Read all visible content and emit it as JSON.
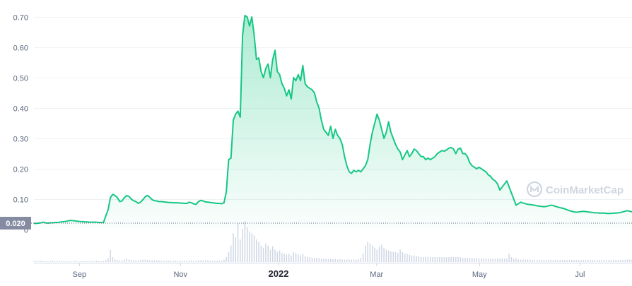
{
  "watermark": {
    "text": "CoinMarketCap",
    "icon": "coinmarketcap-logo-icon"
  },
  "current_price_label": "0.020",
  "colors": {
    "line": "#16c784",
    "fill_top": "#16c784",
    "grid": "#eff2f5",
    "axis_text": "#58667e",
    "price_tag_bg": "#858ca2",
    "volume_bar": "#cfd6e4",
    "watermark": "#d0d6e0"
  },
  "chart_data": {
    "type": "area",
    "title": "",
    "xlabel": "",
    "ylabel": "",
    "ylim": [
      0,
      0.75
    ],
    "yticks": [
      "0.70",
      "0.60",
      "0.50",
      "0.40",
      "0.30",
      "0.20",
      "0.10",
      "0"
    ],
    "xticks": [
      "Sep",
      "Nov",
      "2022",
      "Mar",
      "May",
      "Jul"
    ],
    "grid": true,
    "reference_line": 0.02,
    "series": [
      {
        "values": [
          0.02,
          0.02,
          0.021,
          0.022,
          0.024,
          0.022,
          0.021,
          0.022,
          0.022,
          0.023,
          0.023,
          0.024,
          0.025,
          0.026,
          0.027,
          0.029,
          0.03,
          0.029,
          0.028,
          0.027,
          0.026,
          0.026,
          0.025,
          0.025,
          0.024,
          0.024,
          0.024,
          0.024,
          0.023,
          0.023,
          0.023,
          0.045,
          0.065,
          0.105,
          0.116,
          0.112,
          0.105,
          0.092,
          0.094,
          0.105,
          0.112,
          0.109,
          0.1,
          0.095,
          0.092,
          0.086,
          0.09,
          0.098,
          0.108,
          0.112,
          0.106,
          0.098,
          0.095,
          0.094,
          0.092,
          0.092,
          0.091,
          0.09,
          0.089,
          0.089,
          0.088,
          0.088,
          0.088,
          0.087,
          0.087,
          0.086,
          0.086,
          0.09,
          0.088,
          0.084,
          0.083,
          0.092,
          0.096,
          0.094,
          0.091,
          0.09,
          0.089,
          0.088,
          0.087,
          0.086,
          0.086,
          0.085,
          0.088,
          0.125,
          0.23,
          0.235,
          0.36,
          0.38,
          0.39,
          0.37,
          0.64,
          0.705,
          0.7,
          0.67,
          0.7,
          0.64,
          0.56,
          0.565,
          0.52,
          0.5,
          0.53,
          0.545,
          0.5,
          0.56,
          0.59,
          0.52,
          0.51,
          0.48,
          0.465,
          0.44,
          0.46,
          0.43,
          0.5,
          0.49,
          0.51,
          0.49,
          0.54,
          0.48,
          0.47,
          0.465,
          0.46,
          0.45,
          0.42,
          0.4,
          0.36,
          0.33,
          0.32,
          0.31,
          0.34,
          0.3,
          0.33,
          0.31,
          0.3,
          0.28,
          0.24,
          0.21,
          0.19,
          0.185,
          0.195,
          0.19,
          0.195,
          0.19,
          0.2,
          0.21,
          0.23,
          0.28,
          0.32,
          0.35,
          0.38,
          0.36,
          0.33,
          0.3,
          0.32,
          0.355,
          0.32,
          0.3,
          0.28,
          0.265,
          0.255,
          0.23,
          0.245,
          0.26,
          0.24,
          0.25,
          0.265,
          0.26,
          0.25,
          0.24,
          0.24,
          0.23,
          0.235,
          0.23,
          0.235,
          0.24,
          0.25,
          0.255,
          0.26,
          0.258,
          0.262,
          0.268,
          0.27,
          0.265,
          0.25,
          0.265,
          0.268,
          0.25,
          0.25,
          0.24,
          0.22,
          0.21,
          0.205,
          0.2,
          0.205,
          0.2,
          0.195,
          0.19,
          0.18,
          0.175,
          0.165,
          0.16,
          0.15,
          0.13,
          0.14,
          0.15,
          0.16,
          0.14,
          0.12,
          0.1,
          0.08,
          0.085,
          0.09,
          0.087,
          0.085,
          0.083,
          0.082,
          0.081,
          0.08,
          0.078,
          0.077,
          0.076,
          0.075,
          0.076,
          0.078,
          0.08,
          0.079,
          0.076,
          0.074,
          0.072,
          0.07,
          0.068,
          0.065,
          0.062,
          0.06,
          0.058,
          0.057,
          0.058,
          0.059,
          0.06,
          0.059,
          0.058,
          0.057,
          0.056,
          0.055,
          0.055,
          0.054,
          0.054,
          0.054,
          0.053,
          0.053,
          0.053,
          0.054,
          0.054,
          0.055,
          0.056,
          0.058,
          0.06,
          0.062,
          0.06,
          0.058
        ]
      }
    ],
    "volume": [
      2,
      2,
      2,
      3,
      2,
      2,
      2,
      2,
      3,
      2,
      2,
      2,
      3,
      2,
      2,
      2,
      2,
      2,
      3,
      2,
      2,
      2,
      2,
      2,
      2,
      2,
      2,
      3,
      2,
      2,
      2,
      5,
      10,
      30,
      12,
      6,
      5,
      4,
      4,
      6,
      8,
      6,
      5,
      4,
      4,
      4,
      5,
      6,
      6,
      5,
      5,
      4,
      4,
      4,
      4,
      3,
      3,
      3,
      3,
      3,
      3,
      3,
      3,
      3,
      3,
      3,
      3,
      4,
      4,
      3,
      3,
      5,
      4,
      4,
      4,
      4,
      3,
      3,
      3,
      3,
      3,
      3,
      6,
      12,
      25,
      40,
      70,
      60,
      95,
      55,
      80,
      100,
      85,
      75,
      70,
      65,
      55,
      50,
      40,
      35,
      45,
      40,
      30,
      38,
      30,
      25,
      28,
      22,
      20,
      18,
      20,
      16,
      24,
      22,
      18,
      16,
      20,
      14,
      12,
      12,
      10,
      10,
      10,
      9,
      8,
      8,
      7,
      7,
      7,
      7,
      7,
      6,
      7,
      6,
      6,
      6,
      6,
      6,
      6,
      6,
      7,
      10,
      20,
      40,
      50,
      45,
      40,
      35,
      30,
      38,
      42,
      35,
      30,
      28,
      26,
      25,
      24,
      22,
      30,
      24,
      20,
      20,
      18,
      16,
      16,
      14,
      14,
      12,
      12,
      12,
      12,
      12,
      12,
      12,
      12,
      12,
      12,
      12,
      12,
      12,
      12,
      12,
      12,
      12,
      12,
      10,
      10,
      10,
      10,
      10,
      9,
      9,
      9,
      9,
      9,
      8,
      8,
      8,
      8,
      8,
      8,
      8,
      8,
      8,
      8,
      20,
      12,
      8,
      8,
      6,
      6,
      6,
      6,
      6,
      6,
      5,
      5,
      5,
      5,
      5,
      5,
      5,
      5,
      5,
      5,
      5,
      5,
      5,
      5,
      5,
      5,
      5,
      5,
      5,
      5,
      5,
      5,
      5,
      5,
      5,
      5,
      5,
      5,
      5,
      5,
      5,
      5,
      5,
      5,
      5,
      5,
      5,
      5,
      5,
      5,
      5,
      6,
      6,
      6,
      6,
      6,
      6,
      6,
      5,
      5
    ]
  }
}
